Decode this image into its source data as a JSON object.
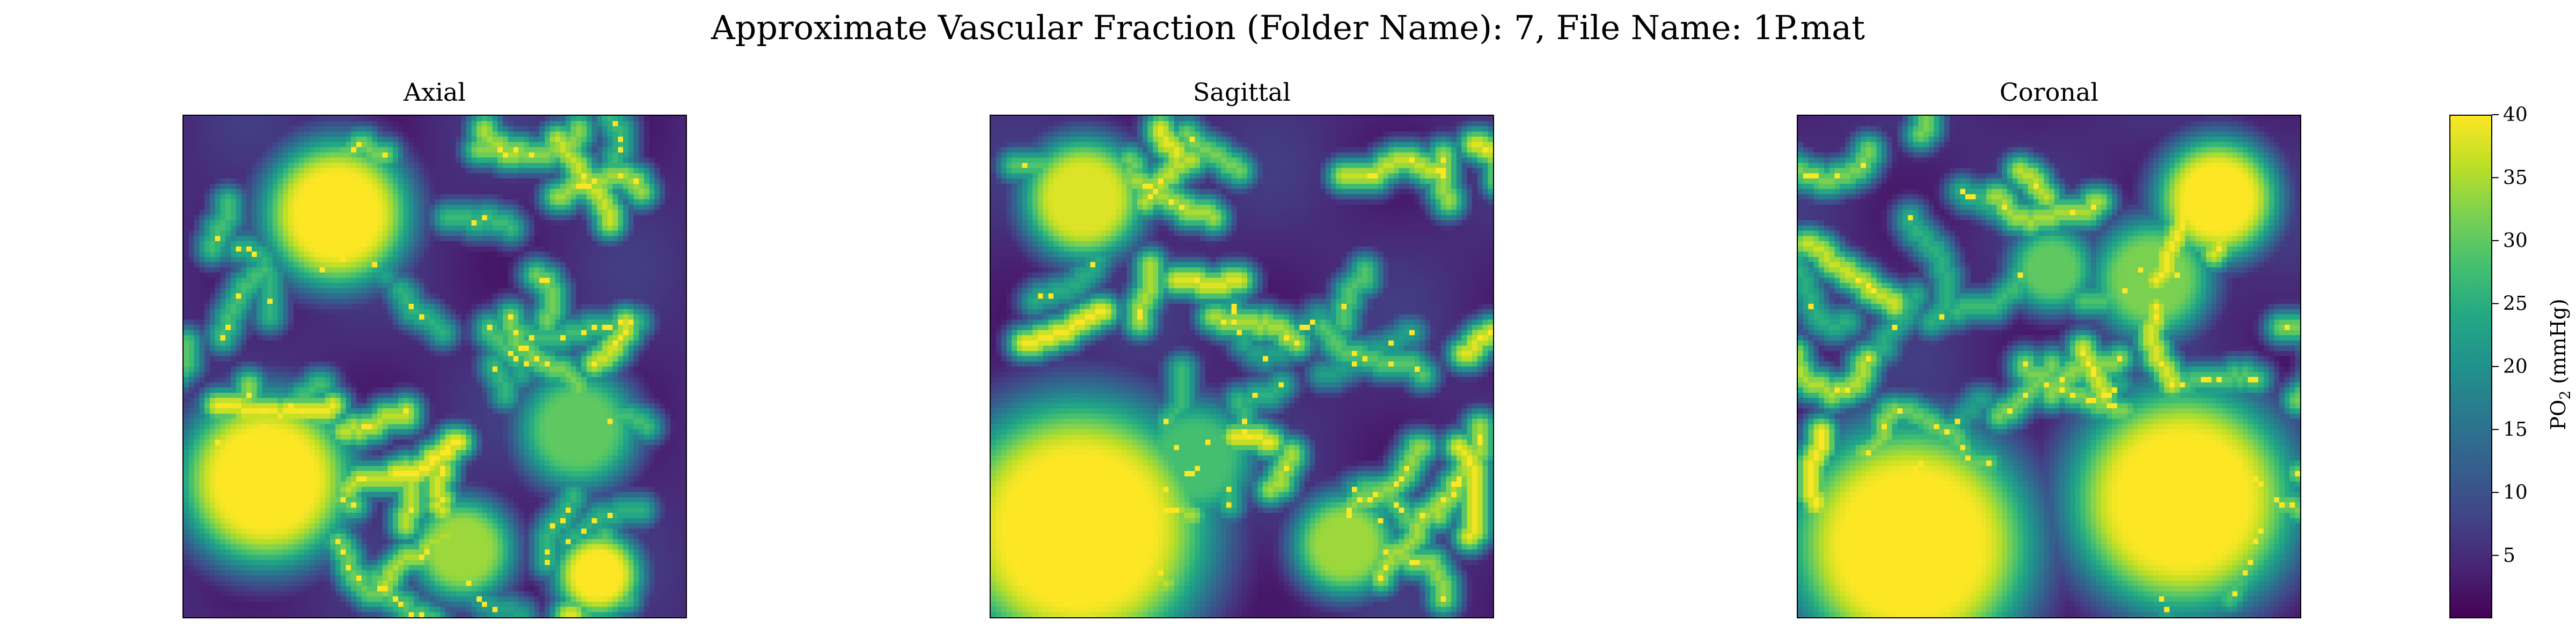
{
  "figure": {
    "title": "Approximate Vascular Fraction (Folder Name): 7, File Name: 1P.mat"
  },
  "colors": {
    "colormap": "viridis",
    "low": "#440154",
    "high": "#fde725"
  },
  "chart_data": [
    {
      "type": "heatmap",
      "title": "Axial",
      "xlabel": "",
      "ylabel": "",
      "axes": "off",
      "grid": false,
      "colormap": "viridis",
      "value_range": [
        0,
        40
      ],
      "vessel_features": [
        {
          "center": [
            0.3,
            0.19
          ],
          "radius": 0.075,
          "peak": 40
        },
        {
          "center": [
            0.16,
            0.72
          ],
          "radius": 0.09,
          "peak": 40
        },
        {
          "center": [
            0.82,
            0.91
          ],
          "radius": 0.04,
          "peak": 40
        },
        {
          "center": [
            0.55,
            0.86
          ],
          "radius": 0.05,
          "peak": 34
        },
        {
          "center": [
            0.78,
            0.62
          ],
          "radius": 0.06,
          "peak": 30
        }
      ]
    },
    {
      "type": "heatmap",
      "title": "Sagittal",
      "xlabel": "",
      "ylabel": "",
      "axes": "off",
      "grid": false,
      "colormap": "viridis",
      "value_range": [
        0,
        40
      ],
      "vessel_features": [
        {
          "center": [
            0.17,
            0.82
          ],
          "radius": 0.14,
          "peak": 40
        },
        {
          "center": [
            0.18,
            0.16
          ],
          "radius": 0.06,
          "peak": 38
        },
        {
          "center": [
            0.7,
            0.85
          ],
          "radius": 0.05,
          "peak": 34
        },
        {
          "center": [
            0.4,
            0.68
          ],
          "radius": 0.06,
          "peak": 28
        }
      ]
    },
    {
      "type": "heatmap",
      "title": "Coronal",
      "xlabel": "",
      "ylabel": "",
      "axes": "off",
      "grid": false,
      "colormap": "viridis",
      "value_range": [
        0,
        40
      ],
      "vessel_features": [
        {
          "center": [
            0.22,
            0.85
          ],
          "radius": 0.13,
          "peak": 40
        },
        {
          "center": [
            0.76,
            0.76
          ],
          "radius": 0.12,
          "peak": 40
        },
        {
          "center": [
            0.83,
            0.16
          ],
          "radius": 0.06,
          "peak": 40
        },
        {
          "center": [
            0.7,
            0.32
          ],
          "radius": 0.06,
          "peak": 32
        },
        {
          "center": [
            0.5,
            0.3
          ],
          "radius": 0.04,
          "peak": 30
        }
      ]
    }
  ],
  "colorbar": {
    "label_prefix": "PO",
    "label_subscript": "2",
    "label_suffix": " (mmHg)",
    "range": [
      0,
      40
    ],
    "ticks": [
      5,
      10,
      15,
      20,
      25,
      30,
      35,
      40
    ],
    "tick_labels": [
      "5",
      "10",
      "15",
      "20",
      "25",
      "30",
      "35",
      "40"
    ]
  }
}
